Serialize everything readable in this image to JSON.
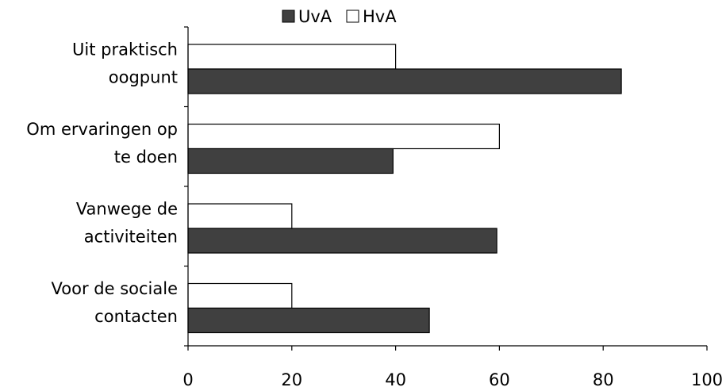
{
  "chart_data": {
    "type": "bar",
    "orientation": "horizontal",
    "categories": [
      [
        "Uit praktisch",
        "oogpunt"
      ],
      [
        "Om ervaringen op",
        "te doen"
      ],
      [
        "Vanwege de",
        "activiteiten"
      ],
      [
        "Voor de sociale",
        "contacten"
      ]
    ],
    "series": [
      {
        "name": "UvA",
        "color": "#404040",
        "values": [
          83.5,
          39.5,
          59.5,
          46.5
        ]
      },
      {
        "name": "HvA",
        "color": "#ffffff",
        "values": [
          40,
          60,
          20,
          20
        ]
      }
    ],
    "xlim": [
      0,
      100
    ],
    "xticks": [
      0,
      20,
      40,
      60,
      80,
      100
    ],
    "xtick_labels": [
      "0",
      "20",
      "40",
      "60",
      "80",
      "100"
    ],
    "legend": {
      "position": "top",
      "entries": [
        "UvA",
        "HvA"
      ]
    },
    "grid": false,
    "title": "",
    "xlabel": "",
    "ylabel": ""
  }
}
